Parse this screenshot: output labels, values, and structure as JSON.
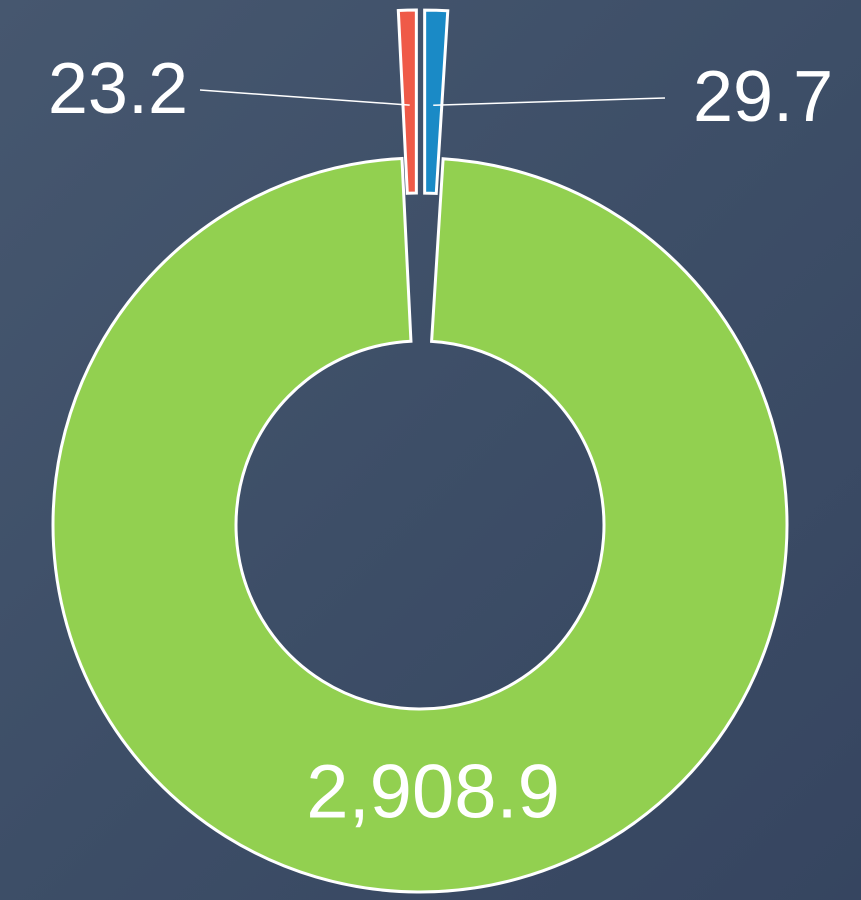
{
  "chart_data": {
    "type": "donut",
    "categories": [
      null,
      null,
      null
    ],
    "values": [
      29.7,
      2908.9,
      23.2
    ],
    "value_labels": [
      "29.7",
      "2,908.9",
      "23.2"
    ],
    "colors": [
      "#1a8ac6",
      "#92d050",
      "#ef5a48"
    ]
  }
}
